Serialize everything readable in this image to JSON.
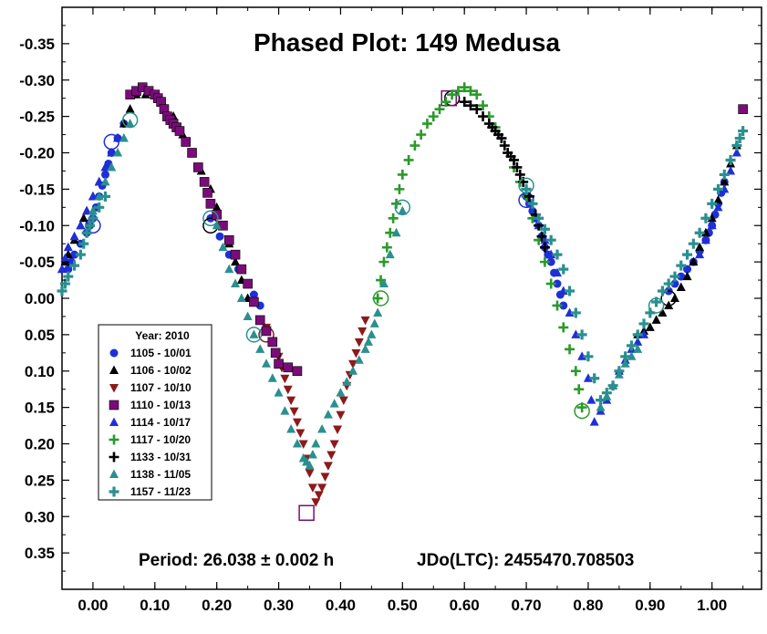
{
  "chart_data": {
    "type": "scatter",
    "title": "Phased Plot: 149 Medusa",
    "xlabel": "",
    "ylabel": "",
    "xlim": [
      -0.05,
      1.08
    ],
    "ylim": [
      0.4,
      -0.4
    ],
    "y_inverted": true,
    "x_ticks": [
      "0.00",
      "0.10",
      "0.20",
      "0.30",
      "0.40",
      "0.50",
      "0.60",
      "0.70",
      "0.80",
      "0.90",
      "1.00"
    ],
    "x_tick_values": [
      0.0,
      0.1,
      0.2,
      0.3,
      0.4,
      0.5,
      0.6,
      0.7,
      0.8,
      0.9,
      1.0
    ],
    "y_ticks": [
      "-0.35",
      "-0.30",
      "-0.25",
      "-0.20",
      "-0.15",
      "-0.10",
      "-0.05",
      "0.00",
      "0.05",
      "0.10",
      "0.15",
      "0.20",
      "0.25",
      "0.30",
      "0.35"
    ],
    "y_tick_values": [
      -0.35,
      -0.3,
      -0.25,
      -0.2,
      -0.15,
      -0.1,
      -0.05,
      0.0,
      0.05,
      0.1,
      0.15,
      0.2,
      0.25,
      0.3,
      0.35
    ],
    "footer_period": "Period: 26.038 ± 0.002 h",
    "footer_epoch": "JDo(LTC): 2455470.708503",
    "legend_title": "Year: 2010",
    "legend_position": "left",
    "grid": false,
    "series": [
      {
        "name": "1105 - 10/01",
        "color": "#1f2fd8",
        "marker": "circle",
        "x": [
          -0.04,
          -0.03,
          -0.01,
          0.0,
          0.01,
          0.02,
          0.03,
          0.05,
          0.19,
          0.22,
          0.25,
          0.27,
          0.7,
          0.71,
          0.72,
          0.73,
          0.74,
          0.75,
          0.76,
          0.93,
          0.95,
          0.97,
          0.99,
          1.0,
          1.01,
          1.02
        ],
        "y": [
          -0.04,
          -0.06,
          -0.09,
          -0.11,
          -0.14,
          -0.17,
          -0.2,
          -0.24,
          -0.11,
          -0.06,
          -0.02,
          0.01,
          -0.14,
          -0.12,
          -0.1,
          -0.07,
          -0.05,
          -0.02,
          0.01,
          -0.01,
          -0.03,
          -0.05,
          -0.08,
          -0.1,
          -0.13,
          -0.16
        ],
        "rings": [
          [
            0.0,
            -0.1
          ],
          [
            0.7,
            -0.135
          ]
        ]
      },
      {
        "name": "1106 - 10/02",
        "color": "#000000",
        "marker": "triangle-up",
        "x": [
          -0.05,
          -0.04,
          -0.02,
          -0.01,
          0.01,
          0.03,
          0.05,
          0.07,
          0.1,
          0.13,
          0.16,
          0.19,
          0.21,
          0.23,
          0.25,
          0.88,
          0.9,
          0.92,
          0.94,
          0.96,
          0.98,
          1.0,
          1.02,
          1.04
        ],
        "y": [
          -0.04,
          -0.06,
          -0.1,
          -0.12,
          -0.16,
          -0.2,
          -0.24,
          -0.28,
          -0.28,
          -0.25,
          -0.2,
          -0.15,
          -0.1,
          -0.05,
          0.0,
          0.05,
          0.04,
          0.02,
          0.0,
          -0.03,
          -0.07,
          -0.11,
          -0.16,
          -0.21
        ],
        "rings": [
          [
            0.19,
            -0.1
          ],
          [
            0.58,
            -0.275
          ]
        ]
      },
      {
        "name": "1107 - 10/10",
        "color": "#8b1a1a",
        "marker": "triangle-down",
        "x": [
          0.28,
          0.3,
          0.31,
          0.32,
          0.33,
          0.34,
          0.35,
          0.36,
          0.37,
          0.38,
          0.39,
          0.4,
          0.41,
          0.42,
          0.43,
          0.44
        ],
        "y": [
          0.04,
          0.08,
          0.11,
          0.14,
          0.17,
          0.2,
          0.24,
          0.28,
          0.26,
          0.23,
          0.2,
          0.16,
          0.12,
          0.09,
          0.06,
          0.03
        ],
        "rings": [
          [
            0.28,
            0.05
          ]
        ]
      },
      {
        "name": "1110 - 10/13",
        "color": "#7a0c7a",
        "marker": "square",
        "x": [
          0.06,
          0.08,
          0.1,
          0.11,
          0.12,
          0.13,
          0.14,
          0.16,
          0.18,
          0.19,
          0.21,
          0.23,
          0.25,
          0.27,
          0.29,
          0.3,
          0.33,
          1.05
        ],
        "y": [
          -0.28,
          -0.29,
          -0.28,
          -0.27,
          -0.25,
          -0.24,
          -0.23,
          -0.2,
          -0.16,
          -0.13,
          -0.1,
          -0.06,
          -0.02,
          0.03,
          0.06,
          0.09,
          0.1,
          -0.26
        ],
        "rings": [
          [
            0.345,
            0.295
          ],
          [
            0.575,
            -0.275
          ]
        ]
      },
      {
        "name": "1114 - 10/17",
        "color": "#1f2fd8",
        "marker": "triangle-up",
        "x": [
          -0.05,
          -0.04,
          -0.02,
          0.0,
          0.02,
          0.04,
          0.72,
          0.74,
          0.76,
          0.78,
          0.8,
          0.81,
          0.83,
          0.85,
          0.87,
          0.89,
          0.98,
          1.0,
          1.02,
          1.04
        ],
        "y": [
          -0.04,
          -0.07,
          -0.1,
          -0.14,
          -0.18,
          -0.22,
          -0.1,
          -0.06,
          -0.01,
          0.05,
          0.11,
          0.17,
          0.14,
          0.1,
          0.07,
          0.05,
          -0.06,
          -0.1,
          -0.15,
          -0.2
        ],
        "rings": [
          [
            0.03,
            -0.215
          ]
        ]
      },
      {
        "name": "1117 - 10/20",
        "color": "#2a9a2a",
        "marker": "plus",
        "x": [
          0.46,
          0.47,
          0.48,
          0.49,
          0.5,
          0.52,
          0.54,
          0.56,
          0.58,
          0.6,
          0.62,
          0.64,
          0.66,
          0.68,
          0.7,
          0.72,
          0.74,
          0.76,
          0.78,
          0.79
        ],
        "y": [
          0.0,
          -0.05,
          -0.09,
          -0.13,
          -0.17,
          -0.21,
          -0.24,
          -0.26,
          -0.28,
          -0.29,
          -0.28,
          -0.25,
          -0.22,
          -0.18,
          -0.14,
          -0.08,
          -0.02,
          0.04,
          0.1,
          0.15
        ],
        "rings": [
          [
            0.465,
            0.0
          ],
          [
            0.79,
            0.155
          ]
        ]
      },
      {
        "name": "1133 - 10/31",
        "color": "#000000",
        "marker": "plus",
        "x": [
          0.6,
          0.62,
          0.64,
          0.65,
          0.66,
          0.67,
          0.68,
          0.69,
          0.7,
          0.71,
          0.72,
          0.73
        ],
        "y": [
          -0.27,
          -0.26,
          -0.24,
          -0.23,
          -0.22,
          -0.2,
          -0.19,
          -0.17,
          -0.15,
          -0.13,
          -0.1,
          -0.07
        ],
        "rings": [
          [
            0.93,
            0.0
          ]
        ]
      },
      {
        "name": "1138 - 11/05",
        "color": "#2a8f8f",
        "marker": "triangle-up",
        "x": [
          0.0,
          0.02,
          0.04,
          0.06,
          0.2,
          0.22,
          0.24,
          0.26,
          0.28,
          0.3,
          0.32,
          0.34,
          0.35,
          0.36,
          0.38,
          0.4,
          0.42,
          0.44,
          0.45,
          0.46,
          0.48,
          0.5,
          0.82,
          0.84,
          0.86,
          0.88
        ],
        "y": [
          -0.12,
          -0.16,
          -0.2,
          -0.24,
          -0.1,
          -0.04,
          0.0,
          0.05,
          0.09,
          0.13,
          0.18,
          0.22,
          0.23,
          0.2,
          0.16,
          0.13,
          0.1,
          0.07,
          0.05,
          0.02,
          -0.06,
          -0.12,
          0.15,
          0.12,
          0.09,
          0.07
        ],
        "rings": [
          [
            0.06,
            -0.245
          ],
          [
            0.19,
            -0.11
          ],
          [
            0.26,
            0.05
          ],
          [
            0.5,
            -0.125
          ]
        ]
      },
      {
        "name": "1157 - 11/23",
        "color": "#2a8f8f",
        "marker": "star",
        "x": [
          -0.05,
          -0.04,
          -0.02,
          -0.01,
          0.0,
          0.02,
          0.7,
          0.72,
          0.74,
          0.76,
          0.78,
          0.8,
          0.82,
          0.84,
          0.86,
          0.88,
          0.9,
          0.92,
          0.94,
          0.96,
          0.98,
          1.0,
          1.02,
          1.04,
          1.05
        ],
        "y": [
          -0.01,
          -0.03,
          -0.06,
          -0.09,
          -0.11,
          -0.14,
          -0.15,
          -0.11,
          -0.08,
          -0.04,
          0.02,
          0.08,
          0.14,
          0.12,
          0.08,
          0.05,
          0.02,
          -0.01,
          -0.03,
          -0.06,
          -0.09,
          -0.13,
          -0.17,
          -0.21,
          -0.23
        ],
        "rings": [
          [
            0.91,
            0.01
          ],
          [
            0.7,
            -0.155
          ]
        ]
      }
    ]
  }
}
